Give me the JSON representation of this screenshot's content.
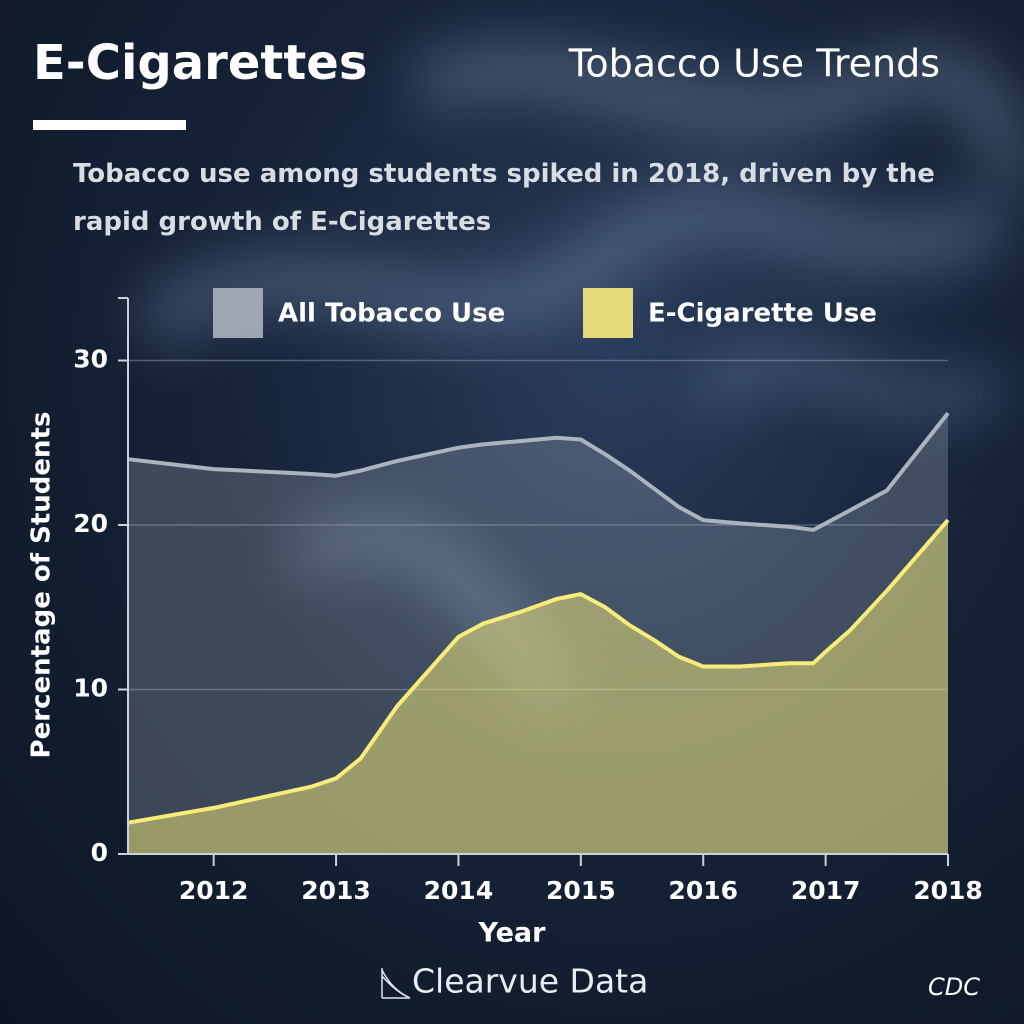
{
  "chart_data": {
    "type": "area",
    "title": "E-Cigarettes",
    "subtitle": "Tobacco Use Trends",
    "description": "Tobacco use among students spiked in 2018, driven by the rapid growth of E-Cigarettes",
    "x_label": "Year",
    "y_label": "Percentage of Students",
    "x": [
      2011.3,
      2012,
      2012.8,
      2013,
      2013.2,
      2013.5,
      2014,
      2014.2,
      2014.5,
      2014.8,
      2015,
      2015.2,
      2015.4,
      2015.6,
      2015.8,
      2016,
      2016.3,
      2016.7,
      2016.9,
      2017,
      2017.2,
      2017.5,
      2018
    ],
    "series": [
      {
        "name": "All Tobacco Use",
        "color": "#aab4bf",
        "values": [
          24.0,
          23.4,
          23.1,
          23.0,
          23.3,
          23.9,
          24.7,
          24.9,
          25.1,
          25.3,
          25.2,
          24.3,
          23.3,
          22.2,
          21.1,
          20.3,
          20.1,
          19.9,
          19.7,
          20.1,
          20.9,
          22.1,
          26.8
        ]
      },
      {
        "name": "E-Cigarette Use",
        "color": "#f7ec7a",
        "values": [
          1.9,
          2.8,
          4.1,
          4.6,
          5.8,
          9.0,
          13.2,
          14.0,
          14.7,
          15.5,
          15.8,
          15.0,
          13.9,
          13.0,
          12.0,
          11.4,
          11.4,
          11.6,
          11.6,
          12.3,
          13.6,
          16.0,
          20.3
        ]
      }
    ],
    "xlim": [
      2011.3,
      2018
    ],
    "xticks": [
      2012,
      2013,
      2014,
      2015,
      2016,
      2017,
      2018
    ],
    "ylim": [
      0,
      33.8
    ],
    "yticks": [
      0,
      10,
      20,
      30
    ],
    "grid": true,
    "legend": "top",
    "brand": "Clearvue Data",
    "source": "CDC"
  }
}
